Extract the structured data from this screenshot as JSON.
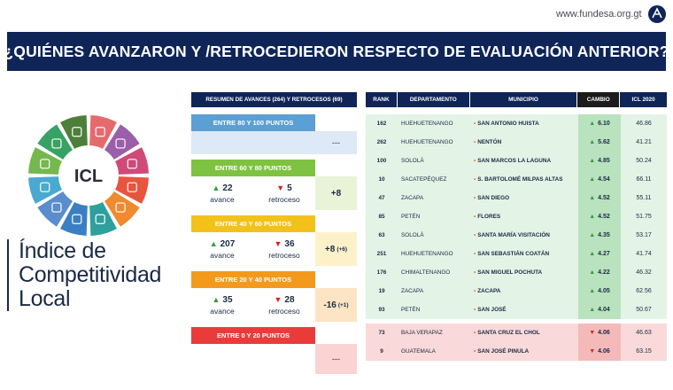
{
  "site_url": "www.fundesa.org.gt",
  "banner_title": "¿QUIÉNES AVANZARON Y /RETROCEDIERON RESPECTO DE EVALUACIÓN ANTERIOR?",
  "brand": {
    "logo_text": "ICL",
    "line1": "Índice de",
    "line2": "Competitividad",
    "line3": "Local",
    "colors": [
      "#e46a6e",
      "#9b5ea8",
      "#cf4a78",
      "#e8553f",
      "#f08a2e",
      "#2e9f9c",
      "#3a7fc1",
      "#5a8dcc",
      "#4aa9d1",
      "#75b84f",
      "#38a265",
      "#4d7f3b"
    ]
  },
  "summary": {
    "header": "RESUMEN DE AVANCES (264) Y RETROCESOS (69)",
    "bands": [
      {
        "label": "ENTRE 80 Y 100 PUNTOS",
        "color": "#5b9fd4",
        "bg": "#dde9f6",
        "has_stats": false,
        "net": "---"
      },
      {
        "label": "ENTRE 60 Y 80 PUNTOS",
        "color": "#7fc241",
        "bg": "#e8f3d8",
        "has_stats": true,
        "up": "22",
        "up_label": "avance",
        "down": "5",
        "down_label": "retroceso",
        "net": "+8",
        "net_extra": ""
      },
      {
        "label": "ENTRE 40 Y 60 PUNTOS",
        "color": "#f2c21a",
        "bg": "#fcf1c9",
        "has_stats": true,
        "up": "207",
        "up_label": "avance",
        "down": "36",
        "down_label": "retroceso",
        "net": "+8",
        "net_extra": "(+6)"
      },
      {
        "label": "ENTRE 20 Y 40 PUNTOS",
        "color": "#f39a1c",
        "bg": "#fde4c4",
        "has_stats": true,
        "up": "35",
        "up_label": "avance",
        "down": "28",
        "down_label": "retroceso",
        "net": "-16",
        "net_extra": "(+1)"
      },
      {
        "label": "ENTRE 0 Y 20 PUNTOS",
        "color": "#ea3b3b",
        "bg": "#fbd3d3",
        "has_stats": false,
        "net": "---"
      }
    ]
  },
  "table": {
    "headers": {
      "rank": "RANK",
      "dep": "DEPARTAMENTO",
      "mun": "MUNICIPIO",
      "chg": "CAMBIO",
      "icl": "ICL 2020"
    },
    "up_rows": [
      {
        "rank": "162",
        "dep": "HUEHUETENANGO",
        "mun": "SAN ANTONIO HUISTA",
        "chg": "6.10",
        "icl": "46.86"
      },
      {
        "rank": "262",
        "dep": "HUEHUETENANGO",
        "mun": "NENTÓN",
        "chg": "5.62",
        "icl": "41.21"
      },
      {
        "rank": "100",
        "dep": "SOLOLÁ",
        "mun": "SAN MARCOS LA LAGUNA",
        "chg": "4.85",
        "icl": "50.24"
      },
      {
        "rank": "10",
        "dep": "SACATEPÉQUEZ",
        "mun": "S. BARTOLOMÉ MILPAS ALTAS",
        "chg": "4.54",
        "icl": "66.11"
      },
      {
        "rank": "47",
        "dep": "ZACAPA",
        "mun": "SAN DIEGO",
        "chg": "4.52",
        "icl": "55.11"
      },
      {
        "rank": "85",
        "dep": "PETÉN",
        "mun": "FLORES",
        "chg": "4.52",
        "icl": "51.75"
      },
      {
        "rank": "63",
        "dep": "SOLOLÁ",
        "mun": "SANTA MARÍA VISITACIÓN",
        "chg": "4.35",
        "icl": "53.17"
      },
      {
        "rank": "251",
        "dep": "HUEHUETENANGO",
        "mun": "SAN SEBASTIÁN COATÁN",
        "chg": "4.27",
        "icl": "41.74"
      },
      {
        "rank": "176",
        "dep": "CHIMALTENANGO",
        "mun": "SAN MIGUEL POCHUTA",
        "chg": "4.22",
        "icl": "46.32"
      },
      {
        "rank": "19",
        "dep": "ZACAPA",
        "mun": "ZACAPA",
        "chg": "4.05",
        "icl": "62.56"
      },
      {
        "rank": "93",
        "dep": "PETÉN",
        "mun": "SAN JOSÉ",
        "chg": "4.04",
        "icl": "50.67"
      }
    ],
    "down_rows": [
      {
        "rank": "73",
        "dep": "BAJA VERAPAZ",
        "mun": "SANTA CRUZ EL CHOL",
        "chg": "4.06",
        "icl": "46.63"
      },
      {
        "rank": "9",
        "dep": "GUATEMALA",
        "mun": "SAN JOSÉ PINULA",
        "chg": "4.06",
        "icl": "63.15"
      }
    ]
  }
}
